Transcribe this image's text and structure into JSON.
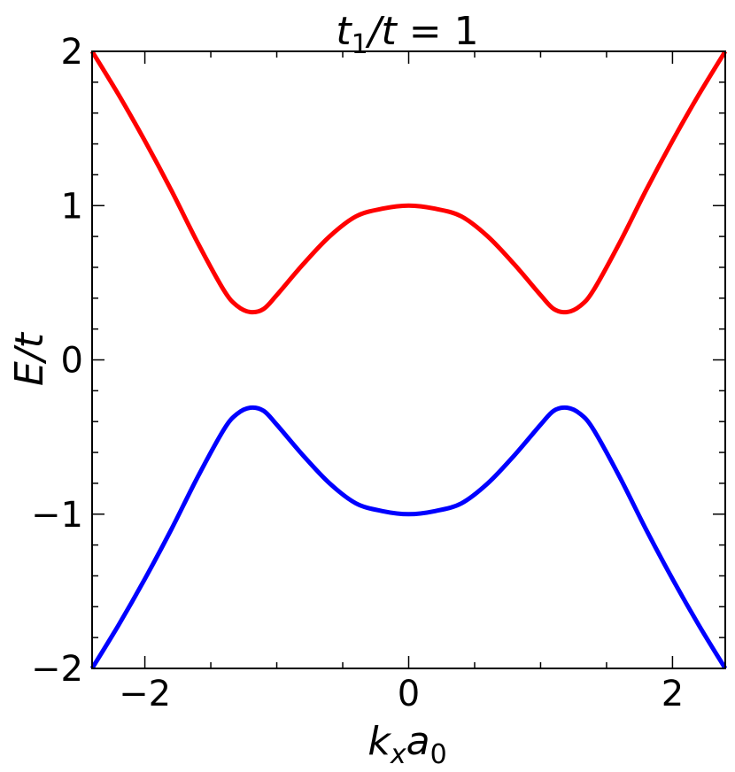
{
  "chart_data": {
    "type": "line",
    "title": {
      "main": "t",
      "sub": "1",
      "rest_italic": "/t",
      "rest": " = 1"
    },
    "xlabel": {
      "main": "k",
      "sub1": "x",
      "mid": "a",
      "sub2": "0"
    },
    "ylabel": "E/t",
    "xlim": [
      -2.4,
      2.4
    ],
    "ylim": [
      -2,
      2
    ],
    "xticks": [
      -2,
      0,
      2
    ],
    "xtick_labels": [
      "−2",
      "0",
      "2"
    ],
    "yticks": [
      -2,
      -1,
      0,
      1,
      2
    ],
    "ytick_labels": [
      "−2",
      "−1",
      "0",
      "1",
      "2"
    ],
    "x_minor_step": 0.5,
    "y_minor_step": 0.2,
    "tick_direction": "in",
    "grid": false,
    "series": [
      {
        "color": "#ff0000",
        "x": [
          -2.4,
          -2.2,
          -2.0,
          -1.8,
          -1.6,
          -1.4,
          -1.3,
          -1.2,
          -1.1,
          -1.0,
          -0.8,
          -0.6,
          -0.4,
          -0.2,
          0.0,
          0.2,
          0.4,
          0.6,
          0.8,
          1.0,
          1.1,
          1.2,
          1.3,
          1.4,
          1.6,
          1.8,
          2.0,
          2.2,
          2.4
        ],
        "y": [
          2.0,
          1.72,
          1.42,
          1.1,
          0.76,
          0.45,
          0.35,
          0.31,
          0.33,
          0.42,
          0.62,
          0.8,
          0.93,
          0.98,
          1.0,
          0.98,
          0.93,
          0.8,
          0.62,
          0.42,
          0.33,
          0.31,
          0.35,
          0.45,
          0.76,
          1.1,
          1.42,
          1.72,
          2.0
        ]
      },
      {
        "color": "#0000ff",
        "x": [
          -2.4,
          -2.2,
          -2.0,
          -1.8,
          -1.6,
          -1.4,
          -1.3,
          -1.2,
          -1.1,
          -1.0,
          -0.8,
          -0.6,
          -0.4,
          -0.2,
          0.0,
          0.2,
          0.4,
          0.6,
          0.8,
          1.0,
          1.1,
          1.2,
          1.3,
          1.4,
          1.6,
          1.8,
          2.0,
          2.2,
          2.4
        ],
        "y": [
          -2.0,
          -1.72,
          -1.42,
          -1.1,
          -0.76,
          -0.45,
          -0.35,
          -0.31,
          -0.33,
          -0.42,
          -0.62,
          -0.8,
          -0.93,
          -0.98,
          -1.0,
          -0.98,
          -0.93,
          -0.8,
          -0.62,
          -0.42,
          -0.33,
          -0.31,
          -0.35,
          -0.45,
          -0.76,
          -1.1,
          -1.42,
          -1.72,
          -2.0
        ]
      }
    ]
  }
}
